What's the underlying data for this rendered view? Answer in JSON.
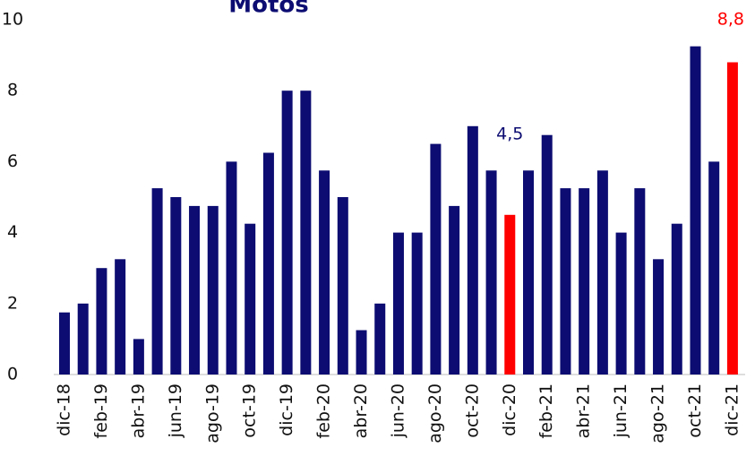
{
  "chart_data": {
    "type": "bar",
    "title": "Motos",
    "categories": [
      "dic-18",
      null,
      "feb-19",
      null,
      "abr-19",
      null,
      "jun-19",
      null,
      "ago-19",
      null,
      "oct-19",
      null,
      "dic-19",
      null,
      "feb-20",
      null,
      "abr-20",
      null,
      "jun-20",
      null,
      "ago-20",
      null,
      "oct-20",
      null,
      "dic-20",
      null,
      "feb-21",
      null,
      "abr-21",
      null,
      "jun-21",
      null,
      "ago-21",
      null,
      "oct-21",
      null,
      "dic-21"
    ],
    "values": [
      1.75,
      2.0,
      3.0,
      3.25,
      1.0,
      5.25,
      5.0,
      4.75,
      4.75,
      6.0,
      4.25,
      6.25,
      8.0,
      8.0,
      5.75,
      5.0,
      1.25,
      2.0,
      4.0,
      4.0,
      6.5,
      4.75,
      7.0,
      5.75,
      4.5,
      5.75,
      6.75,
      5.25,
      5.25,
      5.75,
      4.0,
      5.25,
      3.25,
      4.25,
      9.25,
      6.0,
      8.8
    ],
    "colors": [
      "#0c0c72",
      "#0c0c72",
      "#0c0c72",
      "#0c0c72",
      "#0c0c72",
      "#0c0c72",
      "#0c0c72",
      "#0c0c72",
      "#0c0c72",
      "#0c0c72",
      "#0c0c72",
      "#0c0c72",
      "#0c0c72",
      "#0c0c72",
      "#0c0c72",
      "#0c0c72",
      "#0c0c72",
      "#0c0c72",
      "#0c0c72",
      "#0c0c72",
      "#0c0c72",
      "#0c0c72",
      "#0c0c72",
      "#0c0c72",
      "#ff0000",
      "#0c0c72",
      "#0c0c72",
      "#0c0c72",
      "#0c0c72",
      "#0c0c72",
      "#0c0c72",
      "#0c0c72",
      "#0c0c72",
      "#0c0c72",
      "#0c0c72",
      "#0c0c72",
      "#ff0000"
    ],
    "value_labels": [
      null,
      null,
      null,
      null,
      null,
      null,
      null,
      null,
      null,
      null,
      null,
      null,
      null,
      null,
      null,
      null,
      null,
      null,
      null,
      null,
      null,
      null,
      null,
      null,
      "4,5",
      null,
      null,
      null,
      null,
      null,
      null,
      null,
      null,
      null,
      null,
      null,
      "8,8"
    ],
    "value_label_colors": [
      null,
      null,
      null,
      null,
      null,
      null,
      null,
      null,
      null,
      null,
      null,
      null,
      null,
      null,
      null,
      null,
      null,
      null,
      null,
      null,
      null,
      null,
      null,
      null,
      "#0c0c72",
      null,
      null,
      null,
      null,
      null,
      null,
      null,
      null,
      null,
      null,
      null,
      "#ff0000"
    ],
    "ylim": [
      0,
      10
    ],
    "yticks": [
      0,
      2,
      4,
      6,
      8,
      10
    ],
    "grid": false
  }
}
